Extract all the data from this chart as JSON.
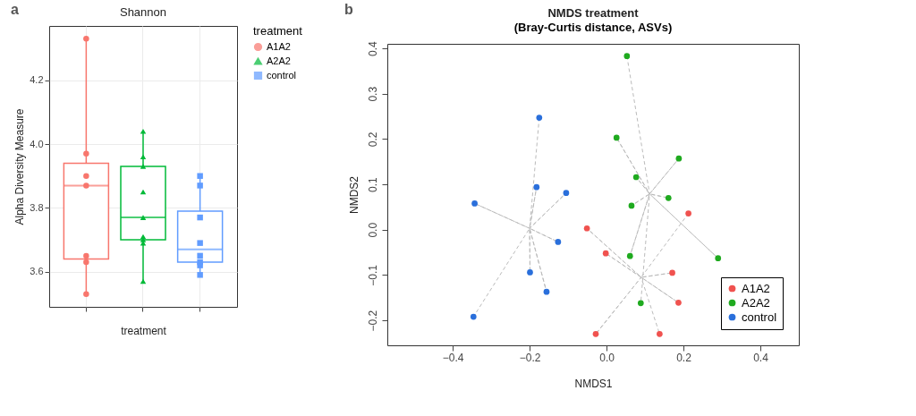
{
  "chart_data": [
    {
      "type": "box",
      "title": "Shannon",
      "xlabel": "treatment",
      "ylabel": "Alpha Diversity Measure",
      "legend_title": "treatment",
      "legend": "right",
      "grid": true,
      "annotations": [
        "a"
      ],
      "categories": [
        null,
        null,
        null
      ],
      "ylim": [
        3.49,
        4.37
      ],
      "yticks": [
        3.6,
        3.8,
        {
          "value": 4,
          "label": "4.0"
        },
        4.2
      ],
      "series": [
        {
          "name": "A1A2",
          "color": "#f8766d",
          "marker": "circle",
          "boxes": [
            {
              "low": 3.53,
              "q1": 3.64,
              "median": 3.87,
              "q3": 3.94,
              "high": 4.33
            },
            null,
            null
          ]
        },
        {
          "name": "A2A2",
          "color": "#00ba38",
          "marker": "triangle",
          "boxes": [
            null,
            {
              "low": 3.57,
              "q1": 3.7,
              "median": 3.77,
              "q3": 3.93,
              "high": 4.04
            },
            null
          ]
        },
        {
          "name": "control",
          "color": "#619cff",
          "marker": "square",
          "boxes": [
            null,
            null,
            {
              "low": 3.59,
              "q1": 3.63,
              "median": 3.67,
              "q3": 3.79,
              "high": 3.9
            }
          ]
        },
        {
          "type": "scatter",
          "color": "#f8766d",
          "marker": "circle",
          "values": [
            4.33,
            null,
            null
          ]
        },
        {
          "type": "scatter",
          "color": "#f8766d",
          "marker": "circle",
          "values": [
            3.97,
            null,
            null
          ]
        },
        {
          "type": "scatter",
          "color": "#f8766d",
          "marker": "circle",
          "values": [
            3.9,
            null,
            null
          ]
        },
        {
          "type": "scatter",
          "color": "#f8766d",
          "marker": "circle",
          "values": [
            3.87,
            null,
            null
          ]
        },
        {
          "type": "scatter",
          "color": "#f8766d",
          "marker": "circle",
          "values": [
            3.65,
            null,
            null
          ]
        },
        {
          "type": "scatter",
          "color": "#f8766d",
          "marker": "circle",
          "values": [
            3.63,
            null,
            null
          ]
        },
        {
          "type": "scatter",
          "color": "#f8766d",
          "marker": "circle",
          "values": [
            3.53,
            null,
            null
          ]
        },
        {
          "type": "scatter",
          "color": "#00ba38",
          "marker": "triangle",
          "values": [
            null,
            4.04,
            null
          ]
        },
        {
          "type": "scatter",
          "color": "#00ba38",
          "marker": "triangle",
          "values": [
            null,
            3.96,
            null
          ]
        },
        {
          "type": "scatter",
          "color": "#00ba38",
          "marker": "triangle",
          "values": [
            null,
            3.93,
            null
          ]
        },
        {
          "type": "scatter",
          "color": "#00ba38",
          "marker": "triangle",
          "values": [
            null,
            3.85,
            null
          ]
        },
        {
          "type": "scatter",
          "color": "#00ba38",
          "marker": "triangle",
          "values": [
            null,
            3.77,
            null
          ]
        },
        {
          "type": "scatter",
          "color": "#00ba38",
          "marker": "triangle",
          "values": [
            null,
            3.71,
            null
          ]
        },
        {
          "type": "scatter",
          "color": "#00ba38",
          "marker": "triangle",
          "values": [
            null,
            3.7,
            null
          ]
        },
        {
          "type": "scatter",
          "color": "#00ba38",
          "marker": "triangle",
          "values": [
            null,
            3.69,
            null
          ]
        },
        {
          "type": "scatter",
          "color": "#00ba38",
          "marker": "triangle",
          "values": [
            null,
            3.57,
            null
          ]
        },
        {
          "type": "scatter",
          "color": "#619cff",
          "marker": "square",
          "values": [
            null,
            null,
            3.9
          ]
        },
        {
          "type": "scatter",
          "color": "#619cff",
          "marker": "square",
          "values": [
            null,
            null,
            3.87
          ]
        },
        {
          "type": "scatter",
          "color": "#619cff",
          "marker": "square",
          "values": [
            null,
            null,
            3.77
          ]
        },
        {
          "type": "scatter",
          "color": "#619cff",
          "marker": "square",
          "values": [
            null,
            null,
            3.69
          ]
        },
        {
          "type": "scatter",
          "color": "#619cff",
          "marker": "square",
          "values": [
            null,
            null,
            3.65
          ]
        },
        {
          "type": "scatter",
          "color": "#619cff",
          "marker": "square",
          "values": [
            null,
            null,
            3.63
          ]
        },
        {
          "type": "scatter",
          "color": "#619cff",
          "marker": "square",
          "values": [
            null,
            null,
            3.62
          ]
        },
        {
          "type": "scatter",
          "color": "#619cff",
          "marker": "square",
          "values": [
            null,
            null,
            3.59
          ]
        }
      ]
    },
    {
      "type": "scatter",
      "title": "NMDS treatment",
      "subtitle": "(Bray-Curtis distance, ASVs)",
      "xlabel": "NMDS1",
      "ylabel": "NMDS2",
      "legend": "bottom right",
      "annotations": [
        "b"
      ],
      "xlim": [
        -0.57,
        0.5
      ],
      "ylim": [
        -0.255,
        0.41
      ],
      "xticks": [
        -0.4,
        -0.2,
        {
          "value": 0,
          "label": "0.0"
        },
        0.2,
        0.4
      ],
      "yticks": [
        -0.2,
        -0.1,
        {
          "value": 0,
          "label": "0.0"
        },
        0.1,
        0.2,
        0.3,
        0.4
      ],
      "series": [
        {
          "type": "line",
          "color": "#bbbbbb",
          "line_style": "dashed",
          "x": [
            0.213,
            0.09,
            -0.051,
            0.09,
            -0.002,
            0.09,
            0.171,
            0.09,
            0.187,
            0.09,
            -0.028,
            0.09,
            0.138
          ],
          "values": [
            0.036,
            -0.105,
            0.003,
            -0.105,
            -0.052,
            -0.105,
            -0.095,
            -0.105,
            -0.161,
            -0.105,
            -0.23,
            -0.105,
            -0.23
          ]
        },
        {
          "type": "line",
          "color": "#bbbbbb",
          "line_style": "dashed",
          "x": [
            0.053,
            0.112,
            0.026,
            0.112,
            0.188,
            0.112,
            0.077,
            0.112,
            0.161,
            0.112,
            0.065,
            0.112,
            0.061,
            0.112,
            0.29,
            0.112,
            0.089
          ],
          "values": [
            0.383,
            0.079,
            0.203,
            0.079,
            0.157,
            0.079,
            0.116,
            0.079,
            0.07,
            0.079,
            0.053,
            0.079,
            -0.058,
            0.079,
            -0.063,
            0.079,
            -0.162
          ]
        },
        {
          "type": "line",
          "color": "#bbbbbb",
          "line_style": "dashed",
          "x": [
            -0.175,
            -0.2,
            -0.182,
            -0.2,
            -0.105,
            -0.2,
            -0.343,
            -0.2,
            -0.126,
            -0.2,
            -0.199,
            -0.2,
            -0.156,
            -0.2,
            -0.346
          ],
          "values": [
            0.247,
            0.003,
            0.094,
            0.003,
            0.081,
            0.003,
            0.058,
            0.003,
            -0.027,
            0.003,
            -0.094,
            0.003,
            -0.137,
            0.003,
            -0.192
          ]
        },
        {
          "name": "A1A2",
          "color": "#f0524f",
          "marker": "circle",
          "x": [
            0.213,
            -0.051,
            -0.002,
            0.171,
            0.187,
            -0.028,
            0.138
          ],
          "values": [
            0.036,
            0.003,
            -0.052,
            -0.095,
            -0.161,
            -0.23,
            -0.23
          ]
        },
        {
          "name": "A2A2",
          "color": "#1faa1f",
          "marker": "circle",
          "x": [
            0.053,
            0.026,
            0.188,
            0.077,
            0.161,
            0.065,
            0.061,
            0.29,
            0.089
          ],
          "values": [
            0.383,
            0.203,
            0.157,
            0.116,
            0.07,
            0.053,
            -0.058,
            -0.063,
            -0.162
          ]
        },
        {
          "name": "control",
          "color": "#2a6fdb",
          "marker": "circle",
          "x": [
            -0.175,
            -0.182,
            -0.105,
            -0.343,
            -0.126,
            -0.199,
            -0.156,
            -0.346
          ],
          "values": [
            0.247,
            0.094,
            0.081,
            0.058,
            -0.027,
            -0.094,
            -0.137,
            -0.192
          ]
        }
      ]
    }
  ]
}
